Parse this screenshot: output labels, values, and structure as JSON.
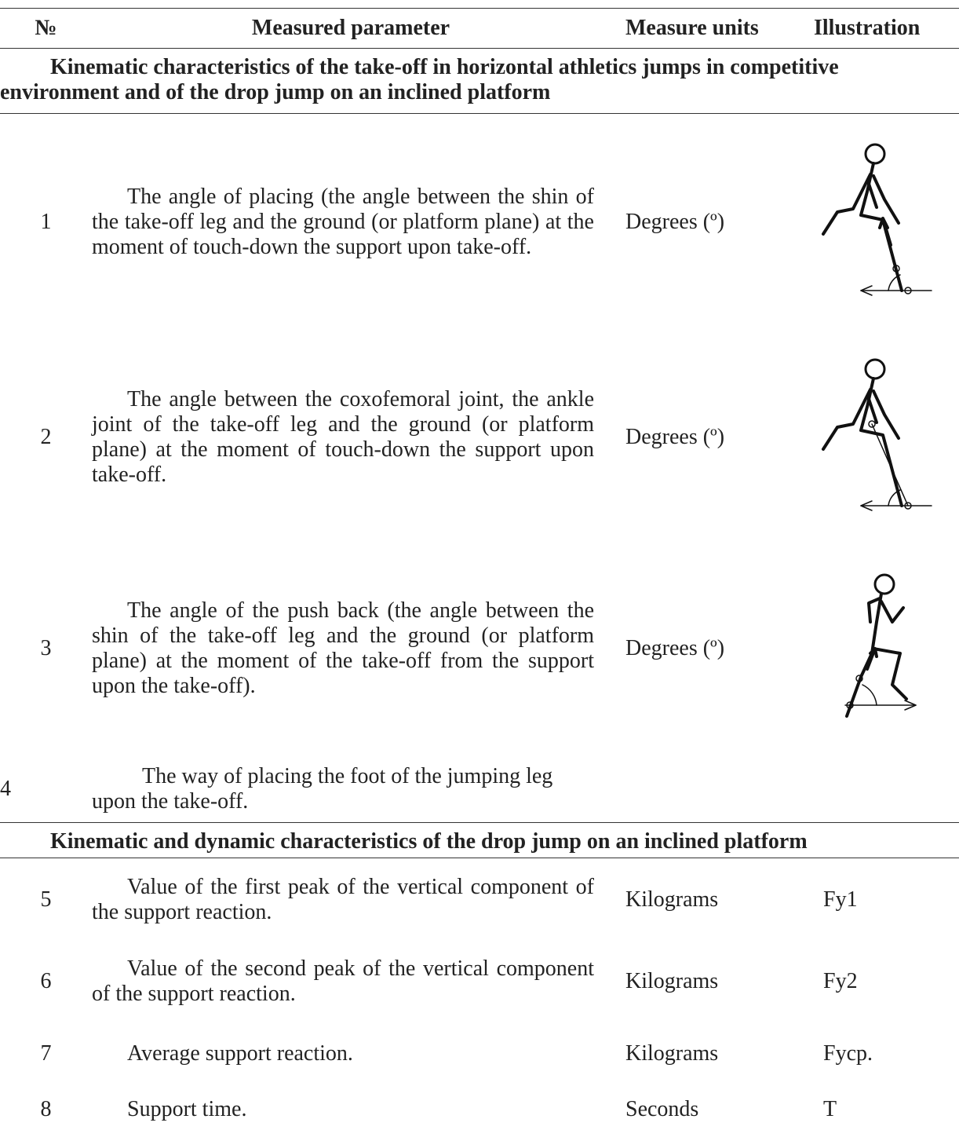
{
  "header": [
    "№",
    "Measured parameter",
    "Measure units",
    "Illustration"
  ],
  "sections": [
    {
      "title": "Kinematic characteristics of the take-off in horizontal athletics jumps in competitive environment and of the drop jump on an inclined platform",
      "rows": [
        {
          "num": "1",
          "parameter": "The angle of placing (the angle between the shin of the take-off leg and the ground (or platform plane) at the moment of touch-down the support upon take-off.",
          "units": "Degrees (º)"
        },
        {
          "num": "2",
          "parameter": "The angle between the coxofemoral joint, the ankle joint of the take-off leg and the ground (or platform plane) at the moment of touch-down the support upon take-off.",
          "units": "Degrees (º)"
        },
        {
          "num": "3",
          "parameter": "The angle of the push back (the angle between the shin of the take-off leg and the ground (or platform plane) at the moment of the take-off from the support upon the take-off).",
          "units": "Degrees (º)"
        },
        {
          "num": "4",
          "parameter": "The way of placing the foot of the jumping leg upon the take-off."
        }
      ]
    },
    {
      "title": "Kinematic and dynamic characteristics of the drop jump on an inclined platform",
      "rows": [
        {
          "num": "5",
          "parameter": "Value of the first peak of the vertical component of the support reaction.",
          "units": "Kilograms",
          "illustration": "Fy1"
        },
        {
          "num": "6",
          "parameter": "Value of the second peak of the vertical component of the support reaction.",
          "units": "Kilograms",
          "illustration": "Fy2"
        },
        {
          "num": "7",
          "parameter": "Average support reaction.",
          "units": "Kilograms",
          "illustration": "Fycp."
        },
        {
          "num": "8",
          "parameter": "Support time.",
          "units": "Seconds",
          "illustration": "T"
        }
      ]
    }
  ]
}
